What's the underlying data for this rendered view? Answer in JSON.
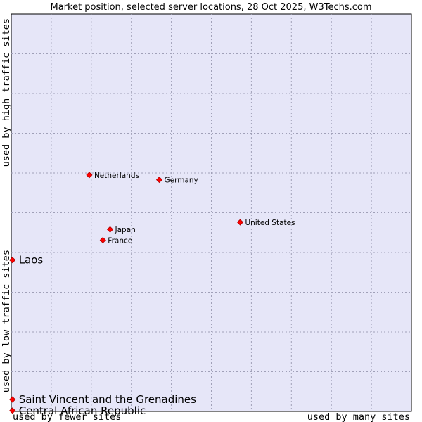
{
  "chart_data": {
    "type": "scatter",
    "title": "Market position, selected server locations, 28 Oct 2025, W3Techs.com",
    "xlabel_left": "used by fewer sites",
    "xlabel_right": "used by many sites",
    "ylabel_top": "used by high traffic sites",
    "ylabel_bottom": "used by low traffic sites",
    "xlim": [
      0,
      100
    ],
    "ylim": [
      0,
      100
    ],
    "grid": true,
    "colors": {
      "plot_bg": "#e6e6f8",
      "marker": "#ff0000",
      "marker_stroke": "#aa0000",
      "grid": "#a0a0b8"
    },
    "points": [
      {
        "name": "Netherlands",
        "x": 19.5,
        "y": 59.5,
        "emphasis": false
      },
      {
        "name": "Germany",
        "x": 37.0,
        "y": 58.3,
        "emphasis": false
      },
      {
        "name": "United States",
        "x": 57.2,
        "y": 47.6,
        "emphasis": false
      },
      {
        "name": "Japan",
        "x": 24.7,
        "y": 45.8,
        "emphasis": false
      },
      {
        "name": "France",
        "x": 22.9,
        "y": 43.1,
        "emphasis": false
      },
      {
        "name": "Laos",
        "x": 0.3,
        "y": 38.1,
        "emphasis": true
      },
      {
        "name": "Saint Vincent and the Grenadines",
        "x": 0.3,
        "y": 3.0,
        "emphasis": true
      },
      {
        "name": "Central African Republic",
        "x": 0.3,
        "y": 0.2,
        "emphasis": true
      }
    ]
  }
}
